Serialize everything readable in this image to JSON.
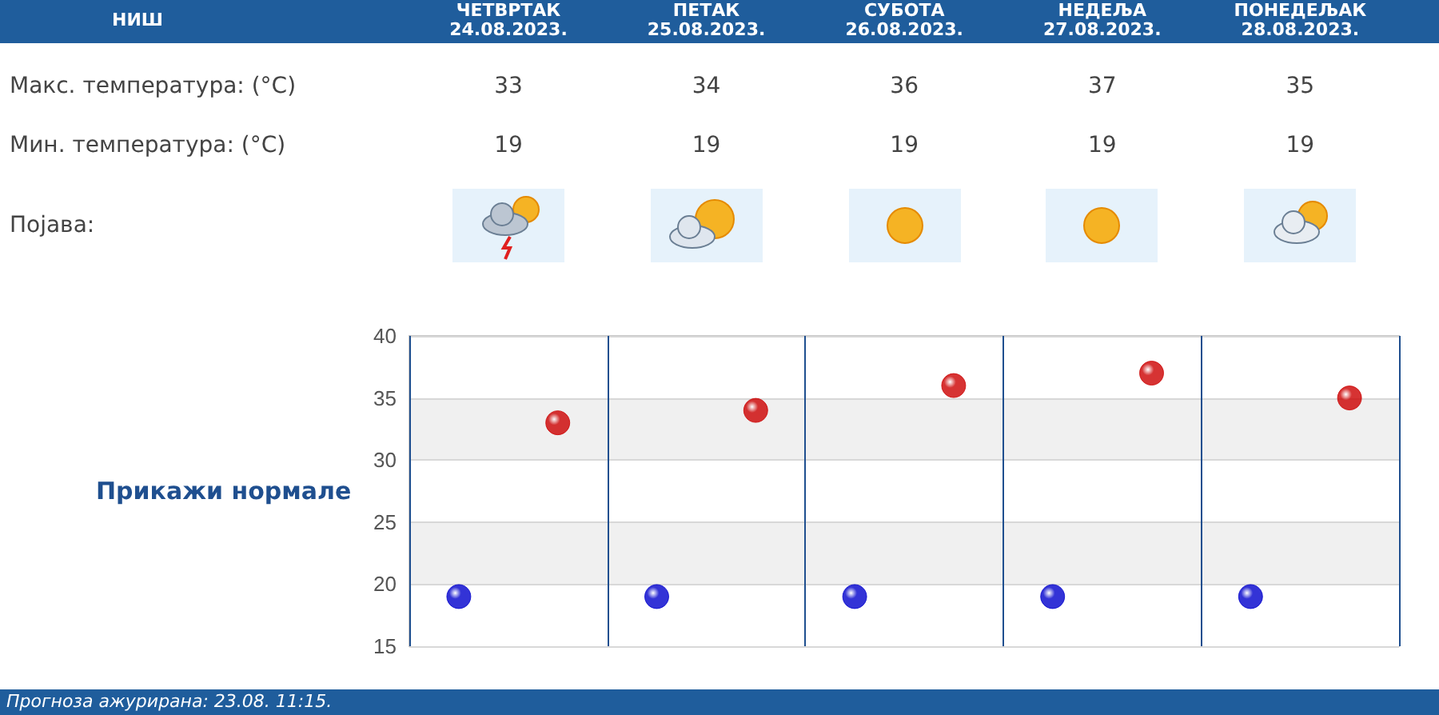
{
  "chart_data": {
    "type": "scatter",
    "title": "НИШ",
    "categories": [
      null,
      null,
      null,
      null,
      null
    ],
    "series": [
      {
        "color": "#cc0000",
        "values": [
          33,
          34,
          36,
          37,
          35
        ]
      },
      {
        "color": "#0000cc",
        "values": [
          19,
          19,
          19,
          19,
          19
        ]
      }
    ],
    "ylim": [
      15,
      40
    ],
    "yticks": [
      15,
      20,
      25,
      30,
      35,
      40
    ],
    "grid": true,
    "tick_labels": "y",
    "marker": "circle",
    "data_labels": true,
    "annotations": [
      "ЧЕТВРТАК\n24.08.2023.",
      "ПЕТАК\n25.08.2023.",
      "СУБОТА\n26.08.2023.",
      "НЕДЕЉА\n27.08.2023.",
      "ПОНЕДЕЉАК\n28.08.2023.",
      "Макс. температура: (°C)",
      "Мин. температура: (°C)",
      "Појава:",
      "Прикажи нормале",
      "Прогноза ажурирана:  23.08. 11:15."
    ]
  }
}
